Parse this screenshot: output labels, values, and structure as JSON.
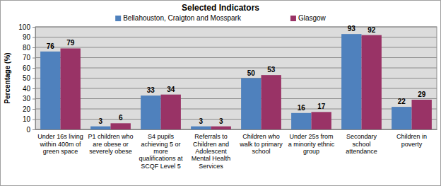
{
  "chart_data": {
    "type": "bar",
    "title": "Selected Indicators",
    "y_label": "Percentage (%)",
    "categories": [
      "Under 16s living within 400m of green space",
      "P1 children who are obese or severely obese",
      "S4 pupils achieving 5 or more qualifications at SCQF Level 5",
      "Referrals to Children and Adolescent Mental Health Services",
      "Children who walk to primary school",
      "Under 25s from a minority ethnic group",
      "Secondary school attendance",
      "Children in poverty"
    ],
    "series": [
      {
        "name": "Bellahouston, Craigton and Mosspark",
        "color": "#4f81bd",
        "values": [
          76,
          3,
          33,
          3,
          50,
          16,
          93,
          22
        ]
      },
      {
        "name": "Glasgow",
        "color": "#993366",
        "values": [
          79,
          6,
          34,
          3,
          53,
          17,
          92,
          29
        ]
      }
    ],
    "ylim": [
      0,
      100
    ],
    "yticks": [
      0,
      10,
      20,
      30,
      40,
      50,
      60,
      70,
      80,
      90,
      100
    ],
    "grid": true,
    "legend": "top",
    "data_labels": true
  }
}
